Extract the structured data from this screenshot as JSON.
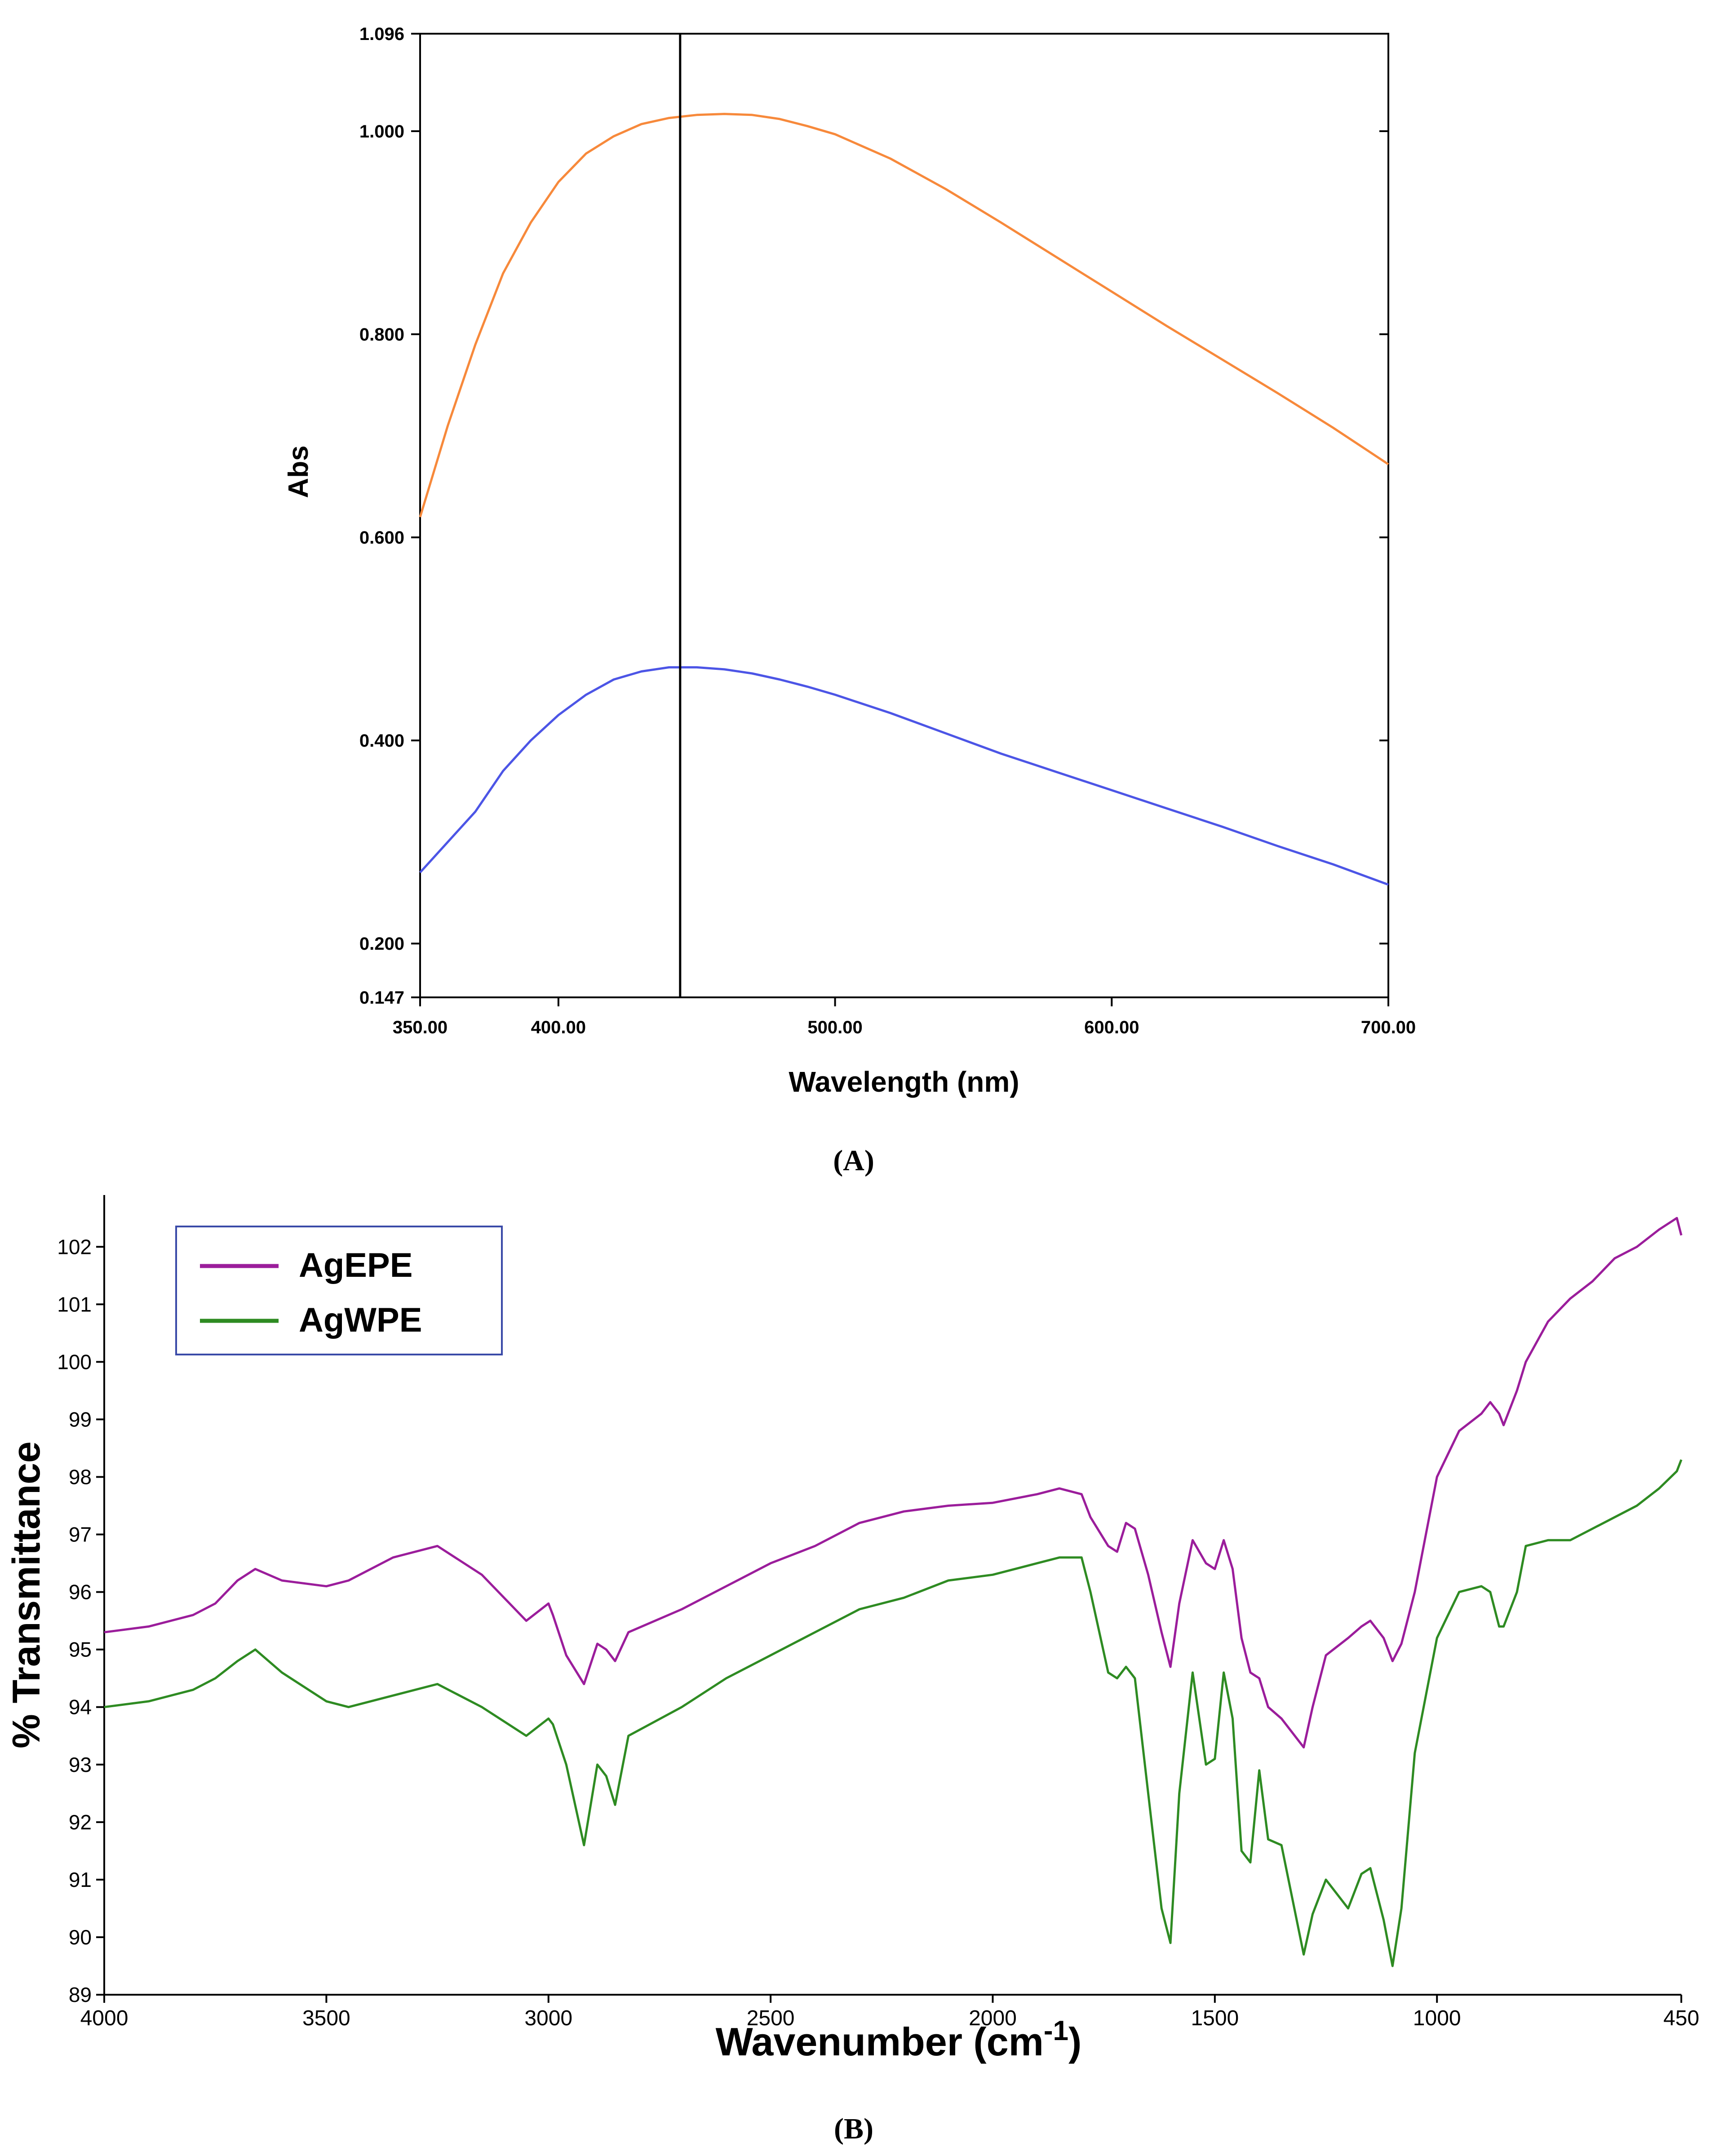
{
  "chart_data": [
    {
      "type": "line",
      "panel_label": "(A)",
      "xlabel": "Wavelength (nm)",
      "ylabel": "Abs",
      "xlim": [
        350,
        700
      ],
      "ylim": [
        0.147,
        1.096
      ],
      "x_ticks": [
        "350.00",
        "400.00",
        "500.00",
        "600.00",
        "700.00"
      ],
      "x_tick_values": [
        350,
        400,
        500,
        600,
        700
      ],
      "y_ticks": [
        "0.147",
        "0.200",
        "0.400",
        "0.600",
        "0.800",
        "1.000",
        "1.096"
      ],
      "y_tick_values": [
        0.147,
        0.2,
        0.4,
        0.6,
        0.8,
        1.0,
        1.096
      ],
      "grid": false,
      "legend": "none",
      "marker_line_x": 444,
      "series": [
        {
          "color": "#f7893b",
          "x": [
            350,
            360,
            370,
            380,
            390,
            400,
            410,
            420,
            430,
            440,
            450,
            460,
            470,
            480,
            490,
            500,
            520,
            540,
            560,
            580,
            600,
            620,
            640,
            660,
            680,
            700
          ],
          "y": [
            0.62,
            0.71,
            0.79,
            0.86,
            0.91,
            0.95,
            0.978,
            0.995,
            1.007,
            1.013,
            1.016,
            1.017,
            1.016,
            1.012,
            1.005,
            0.997,
            0.973,
            0.943,
            0.91,
            0.876,
            0.842,
            0.808,
            0.775,
            0.742,
            0.708,
            0.672
          ]
        },
        {
          "color": "#4c55e6",
          "x": [
            350,
            360,
            370,
            380,
            390,
            400,
            410,
            420,
            430,
            440,
            450,
            460,
            470,
            480,
            490,
            500,
            520,
            540,
            560,
            580,
            600,
            620,
            640,
            660,
            680,
            700
          ],
          "y": [
            0.27,
            0.3,
            0.33,
            0.37,
            0.4,
            0.425,
            0.445,
            0.46,
            0.468,
            0.472,
            0.472,
            0.47,
            0.466,
            0.46,
            0.453,
            0.445,
            0.427,
            0.407,
            0.387,
            0.369,
            0.351,
            0.333,
            0.315,
            0.296,
            0.278,
            0.258
          ]
        }
      ]
    },
    {
      "type": "line",
      "panel_label": "(B)",
      "xlabel_main": "Wavenumber (cm",
      "xlabel_sup": "-1",
      "xlabel_end": ")",
      "ylabel": "% Transmittance",
      "xlim": [
        4000,
        450
      ],
      "ylim": [
        89,
        102.9
      ],
      "x_ticks": [
        "4000",
        "3500",
        "3000",
        "2500",
        "2000",
        "1500",
        "1000",
        "450"
      ],
      "x_tick_values": [
        4000,
        3500,
        3000,
        2500,
        2000,
        1500,
        1000,
        450
      ],
      "y_ticks": [
        "89",
        "90",
        "91",
        "92",
        "93",
        "94",
        "95",
        "96",
        "97",
        "98",
        "99",
        "100",
        "101",
        "102"
      ],
      "y_tick_values": [
        89,
        90,
        91,
        92,
        93,
        94,
        95,
        96,
        97,
        98,
        99,
        100,
        101,
        102
      ],
      "grid": false,
      "legend": "top-left",
      "series": [
        {
          "name": "AgEPE",
          "color": "#9b1d9b",
          "x": [
            4000,
            3900,
            3800,
            3750,
            3700,
            3660,
            3600,
            3500,
            3450,
            3350,
            3250,
            3150,
            3050,
            3000,
            2990,
            2960,
            2920,
            2890,
            2870,
            2850,
            2820,
            2700,
            2600,
            2500,
            2400,
            2300,
            2200,
            2100,
            2000,
            1900,
            1850,
            1800,
            1780,
            1740,
            1720,
            1700,
            1680,
            1650,
            1620,
            1600,
            1580,
            1550,
            1520,
            1500,
            1480,
            1460,
            1440,
            1420,
            1400,
            1380,
            1350,
            1300,
            1280,
            1250,
            1200,
            1170,
            1150,
            1120,
            1100,
            1080,
            1050,
            1000,
            950,
            900,
            880,
            860,
            850,
            820,
            800,
            750,
            700,
            650,
            600,
            550,
            500,
            460,
            450
          ],
          "y": [
            95.3,
            95.4,
            95.6,
            95.8,
            96.2,
            96.4,
            96.2,
            96.1,
            96.2,
            96.6,
            96.8,
            96.3,
            95.5,
            95.8,
            95.6,
            94.9,
            94.4,
            95.1,
            95.0,
            94.8,
            95.3,
            95.7,
            96.1,
            96.5,
            96.8,
            97.2,
            97.4,
            97.5,
            97.55,
            97.7,
            97.8,
            97.7,
            97.3,
            96.8,
            96.7,
            97.2,
            97.1,
            96.3,
            95.3,
            94.7,
            95.8,
            96.9,
            96.5,
            96.4,
            96.9,
            96.4,
            95.2,
            94.6,
            94.5,
            94.0,
            93.8,
            93.3,
            94.0,
            94.9,
            95.2,
            95.4,
            95.5,
            95.2,
            94.8,
            95.1,
            96.0,
            98.0,
            98.8,
            99.1,
            99.3,
            99.1,
            98.9,
            99.5,
            100.0,
            100.7,
            101.1,
            101.4,
            101.8,
            102.0,
            102.3,
            102.5,
            102.2
          ]
        },
        {
          "name": "AgWPE",
          "color": "#2e8b22",
          "x": [
            4000,
            3900,
            3800,
            3750,
            3700,
            3660,
            3600,
            3500,
            3450,
            3350,
            3250,
            3150,
            3050,
            3000,
            2990,
            2960,
            2920,
            2890,
            2870,
            2850,
            2820,
            2700,
            2600,
            2500,
            2400,
            2300,
            2200,
            2100,
            2000,
            1900,
            1850,
            1800,
            1780,
            1740,
            1720,
            1700,
            1680,
            1650,
            1620,
            1600,
            1580,
            1550,
            1520,
            1500,
            1480,
            1460,
            1440,
            1420,
            1400,
            1380,
            1350,
            1300,
            1280,
            1250,
            1200,
            1170,
            1150,
            1120,
            1100,
            1080,
            1050,
            1000,
            950,
            900,
            880,
            860,
            850,
            820,
            800,
            750,
            700,
            650,
            600,
            550,
            500,
            460,
            450
          ],
          "y": [
            94.0,
            94.1,
            94.3,
            94.5,
            94.8,
            95.0,
            94.6,
            94.1,
            94.0,
            94.2,
            94.4,
            94.0,
            93.5,
            93.8,
            93.7,
            93.0,
            91.6,
            93.0,
            92.8,
            92.3,
            93.5,
            94.0,
            94.5,
            94.9,
            95.3,
            95.7,
            95.9,
            96.2,
            96.3,
            96.5,
            96.6,
            96.6,
            96.0,
            94.6,
            94.5,
            94.7,
            94.5,
            92.5,
            90.5,
            89.9,
            92.5,
            94.6,
            93.0,
            93.1,
            94.6,
            93.8,
            91.5,
            91.3,
            92.9,
            91.7,
            91.6,
            89.7,
            90.4,
            91.0,
            90.5,
            91.1,
            91.2,
            90.3,
            89.5,
            90.5,
            93.2,
            95.2,
            96.0,
            96.1,
            96.0,
            95.4,
            95.4,
            96.0,
            96.8,
            96.9,
            96.9,
            97.1,
            97.3,
            97.5,
            97.8,
            98.1,
            98.3
          ]
        }
      ]
    }
  ]
}
